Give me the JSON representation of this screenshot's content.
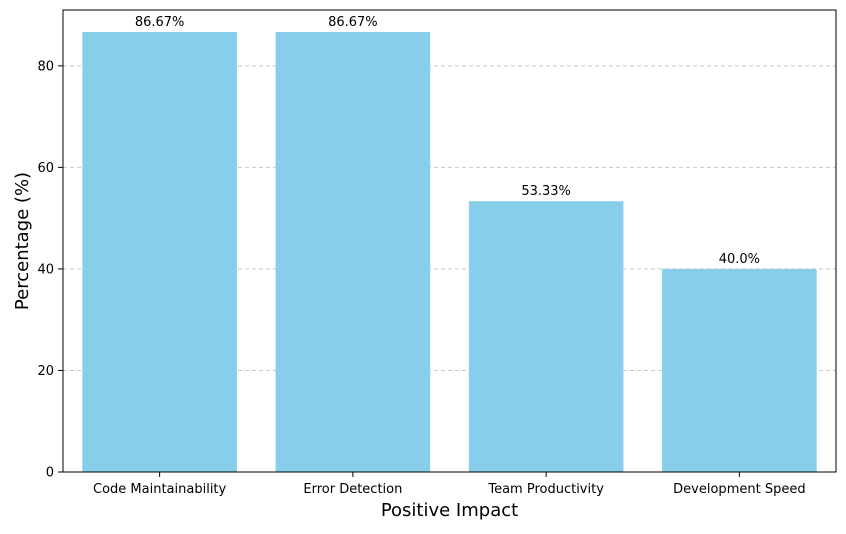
{
  "chart_data": {
    "type": "bar",
    "categories": [
      "Code Maintainability",
      "Error Detection",
      "Team Productivity",
      "Development Speed"
    ],
    "values": [
      86.67,
      86.67,
      53.33,
      40.0
    ],
    "value_labels": [
      "86.67%",
      "86.67%",
      "53.33%",
      "40.0%"
    ],
    "title": "",
    "xlabel": "Positive Impact",
    "ylabel": "Percentage (%)",
    "ylim": [
      0,
      91
    ],
    "yticks": [
      0,
      20,
      40,
      60,
      80
    ],
    "grid": "y-dashed",
    "legend": "none",
    "bar_color": "#87CEEB"
  }
}
